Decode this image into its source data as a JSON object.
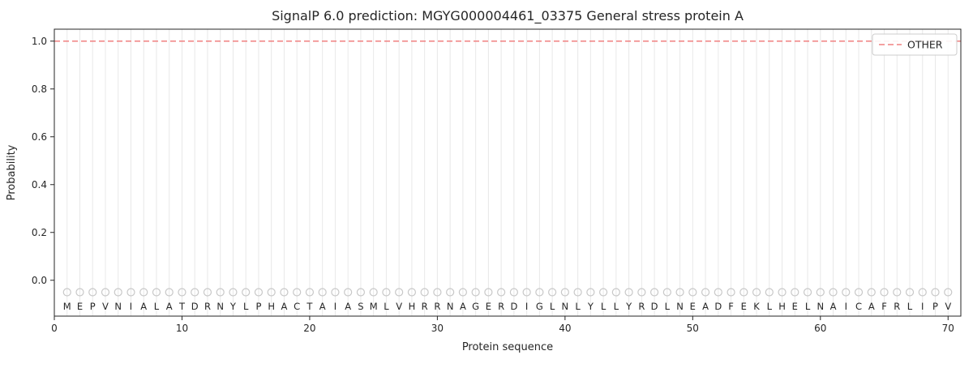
{
  "chart_data": {
    "type": "line",
    "title": "SignalP 6.0 prediction: MGYG000004461_03375 General stress protein A",
    "xlabel": "Protein sequence",
    "ylabel": "Probability",
    "xlim": [
      0,
      71
    ],
    "ylim": [
      -0.15,
      1.05
    ],
    "xticks": [
      0,
      10,
      20,
      30,
      40,
      50,
      60,
      70
    ],
    "yticks": [
      0.0,
      0.2,
      0.4,
      0.6,
      0.8,
      1.0
    ],
    "series": [
      {
        "name": "OTHER",
        "style": "dashed",
        "color": "#f08080",
        "constant_value": 1.0
      }
    ],
    "sequence": "MEPVNIALATDRNYLPHACTAIASMLVHRRNAGERDIGLNLYLLYRDLNEADFEKLHELNAICAFRLIPV",
    "marker_y": -0.05,
    "marker_color": "#c8c8c8",
    "gridline_color": "#e8e8e8",
    "spine_color": "#262626",
    "legend": {
      "position": "top-right",
      "entries": [
        "OTHER"
      ]
    }
  }
}
